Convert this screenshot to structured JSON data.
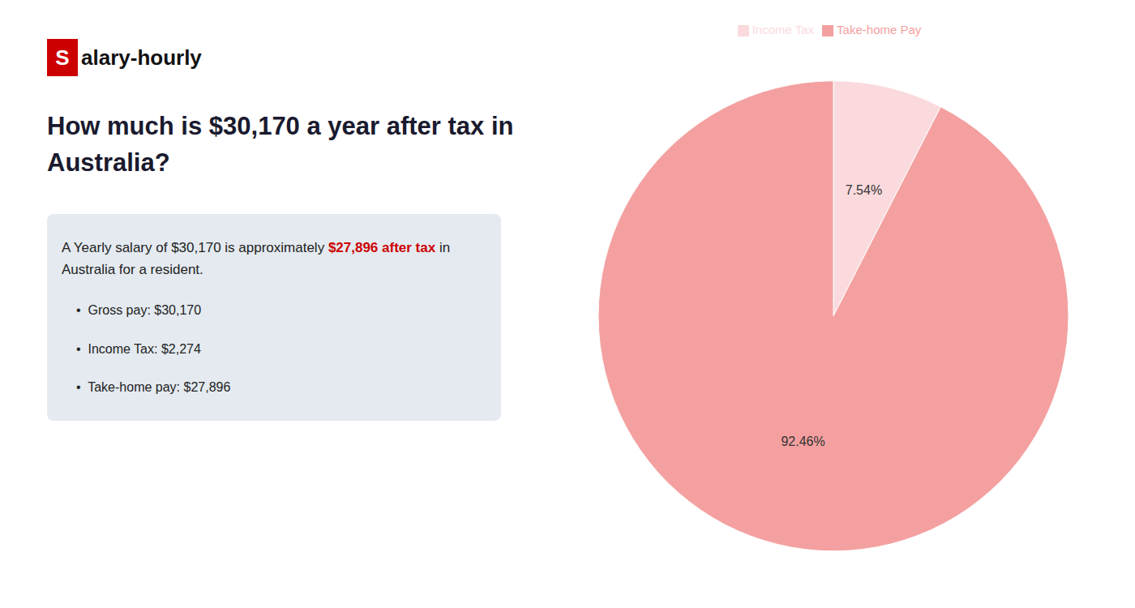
{
  "chart_data": {
    "type": "pie",
    "title": "How much is $30,170 a year after tax in Australia?",
    "categories": [
      "Income Tax",
      "Take-home Pay"
    ],
    "values": [
      7.54,
      92.46
    ],
    "value_labels": [
      "7.54%",
      "92.46%"
    ],
    "colors": [
      "#fadadd",
      "#f4a0a0"
    ],
    "data_labels": true,
    "legend": "top",
    "annotations": [
      {
        "text": "S",
        "color": "#cc0000"
      },
      {
        "text": "alary-hourly"
      },
      {
        "text": "A Yearly salary of $30,170 is approximately "
      },
      {
        "text": "$27,896 after tax",
        "color": "#cc0000"
      },
      {
        "text": " in"
      },
      {
        "text": "Australia for a resident."
      },
      {
        "text": "•  Gross pay: $30,170"
      },
      {
        "text": "•  Income Tax: $2,274"
      },
      {
        "text": "•  Take-home pay: $27,896"
      }
    ]
  }
}
